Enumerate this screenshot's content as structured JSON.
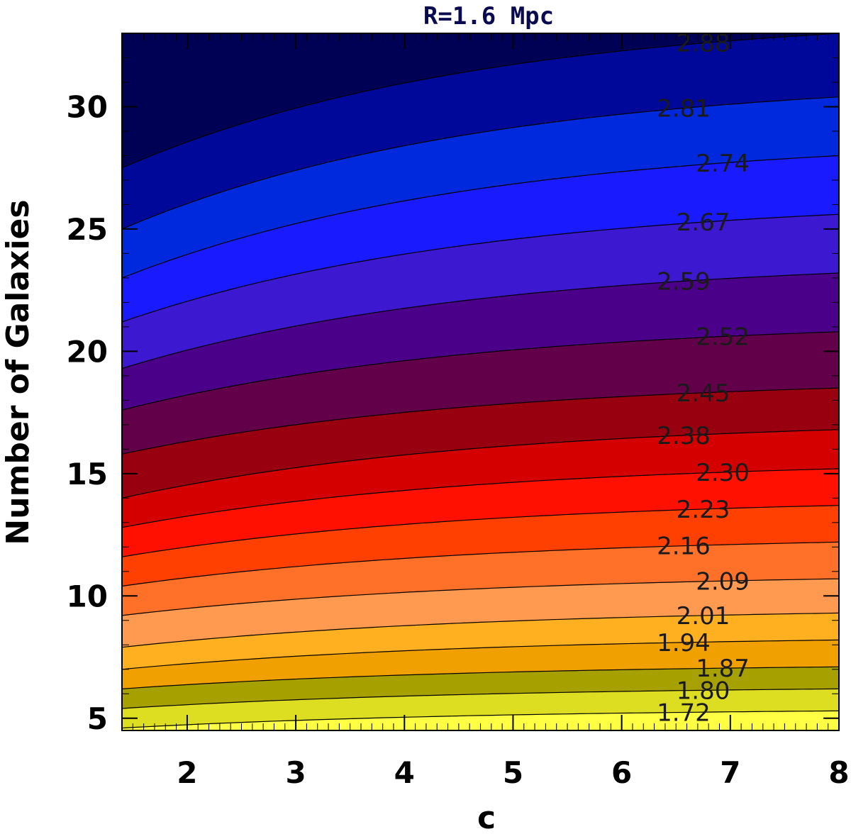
{
  "chart_data": {
    "type": "contour",
    "title": "R=1.6 Mpc",
    "xlabel": "c",
    "ylabel": "Number of Galaxies",
    "xlim": [
      1.4,
      8.0
    ],
    "ylim": [
      4.5,
      33.0
    ],
    "xticks": [
      2,
      3,
      4,
      5,
      6,
      7,
      8
    ],
    "yticks": [
      5,
      10,
      15,
      20,
      25,
      30
    ],
    "levels": [
      {
        "value": 1.72,
        "label": "1.72",
        "y_left": 4.6,
        "y_right": 5.3
      },
      {
        "value": 1.8,
        "label": "1.80",
        "y_left": 5.4,
        "y_right": 6.2
      },
      {
        "value": 1.87,
        "label": "1.87",
        "y_left": 6.2,
        "y_right": 7.1
      },
      {
        "value": 1.94,
        "label": "1.94",
        "y_left": 7.0,
        "y_right": 8.2
      },
      {
        "value": 2.01,
        "label": "2.01",
        "y_left": 7.9,
        "y_right": 9.3
      },
      {
        "value": 2.09,
        "label": "2.09",
        "y_left": 9.2,
        "y_right": 10.7
      },
      {
        "value": 2.16,
        "label": "2.16",
        "y_left": 10.4,
        "y_right": 12.2
      },
      {
        "value": 2.23,
        "label": "2.23",
        "y_left": 11.6,
        "y_right": 13.7
      },
      {
        "value": 2.3,
        "label": "2.30",
        "y_left": 12.8,
        "y_right": 15.2
      },
      {
        "value": 2.38,
        "label": "2.38",
        "y_left": 14.0,
        "y_right": 16.8
      },
      {
        "value": 2.45,
        "label": "2.45",
        "y_left": 15.8,
        "y_right": 18.5
      },
      {
        "value": 2.52,
        "label": "2.52",
        "y_left": 17.6,
        "y_right": 20.8
      },
      {
        "value": 2.59,
        "label": "2.59",
        "y_left": 19.3,
        "y_right": 23.2
      },
      {
        "value": 2.67,
        "label": "2.67",
        "y_left": 21.2,
        "y_right": 25.6
      },
      {
        "value": 2.74,
        "label": "2.74",
        "y_left": 23.0,
        "y_right": 28.0
      },
      {
        "value": 2.81,
        "label": "2.81",
        "y_left": 25.0,
        "y_right": 30.4
      },
      {
        "value": 2.88,
        "label": "2.88",
        "y_left": 27.5,
        "y_right": 33.0
      }
    ],
    "band_colors": [
      "#ffff44",
      "#dddd22",
      "#a6a000",
      "#f0a000",
      "#ffb020",
      "#ff9a50",
      "#ff7028",
      "#ff4000",
      "#ff1000",
      "#d40000",
      "#980010",
      "#62004a",
      "#4a0088",
      "#3c18d0",
      "#1a1aff",
      "#0028dd",
      "#00089a",
      "#000055",
      "#00002e"
    ]
  }
}
